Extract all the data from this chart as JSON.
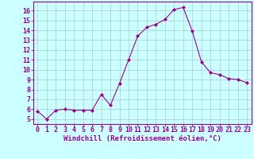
{
  "x": [
    0,
    1,
    2,
    3,
    4,
    5,
    6,
    7,
    8,
    9,
    10,
    11,
    12,
    13,
    14,
    15,
    16,
    17,
    18,
    19,
    20,
    21,
    22,
    23
  ],
  "y": [
    5.8,
    5.0,
    5.9,
    6.0,
    5.9,
    5.9,
    5.9,
    7.5,
    6.4,
    8.6,
    11.0,
    13.4,
    14.3,
    14.6,
    15.1,
    16.1,
    16.3,
    13.9,
    10.8,
    9.7,
    9.5,
    9.1,
    9.0,
    8.7
  ],
  "line_color": "#990099",
  "marker": "D",
  "marker_size": 2.0,
  "bg_color": "#ccffff",
  "grid_color": "#aacccc",
  "xlabel": "Windchill (Refroidissement éolien,°C)",
  "xlabel_color": "#990099",
  "xlabel_fontsize": 6.5,
  "xtick_labels": [
    "0",
    "1",
    "2",
    "3",
    "4",
    "5",
    "6",
    "7",
    "8",
    "9",
    "10",
    "11",
    "12",
    "13",
    "14",
    "15",
    "16",
    "17",
    "18",
    "19",
    "20",
    "21",
    "22",
    "23"
  ],
  "ytick_min": 5,
  "ytick_max": 16,
  "ytick_step": 1,
  "tick_fontsize": 6.0,
  "tick_color": "#990099",
  "axes_color": "#990099",
  "ylim_min": 4.5,
  "ylim_max": 16.9,
  "xlim_min": -0.5,
  "xlim_max": 23.5
}
